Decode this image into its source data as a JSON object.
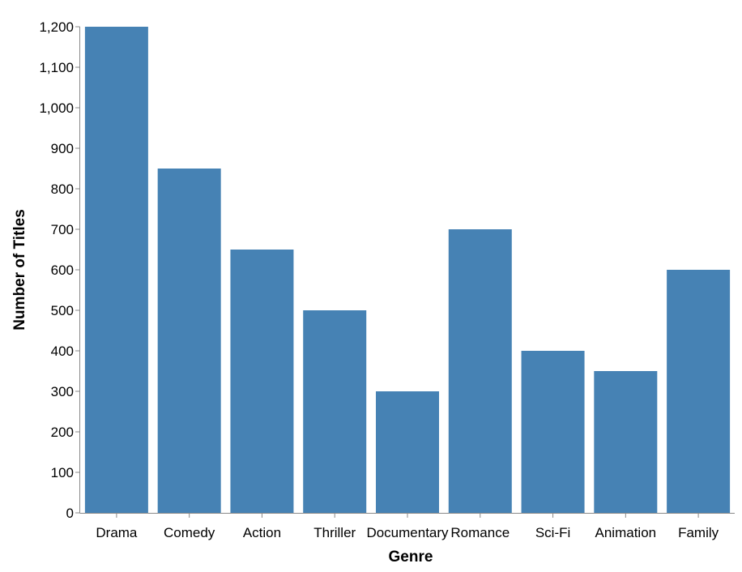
{
  "chart_data": {
    "type": "bar",
    "categories": [
      "Drama",
      "Comedy",
      "Action",
      "Thriller",
      "Documentary",
      "Romance",
      "Sci-Fi",
      "Animation",
      "Family"
    ],
    "values": [
      1200,
      850,
      650,
      500,
      300,
      700,
      400,
      350,
      600
    ],
    "title": "",
    "xlabel": "Genre",
    "ylabel": "Number of Titles",
    "ylim": [
      0,
      1200
    ],
    "yticks": [
      0,
      100,
      200,
      300,
      400,
      500,
      600,
      700,
      800,
      900,
      1000,
      1100,
      1200
    ],
    "ytick_labels": [
      "0",
      "100",
      "200",
      "300",
      "400",
      "500",
      "600",
      "700",
      "800",
      "900",
      "1,000",
      "1,100",
      "1,200"
    ],
    "grid": false,
    "legend": "none",
    "colors": {
      "bar": "#4682b4",
      "axis": "#888888",
      "text": "#000000"
    }
  }
}
